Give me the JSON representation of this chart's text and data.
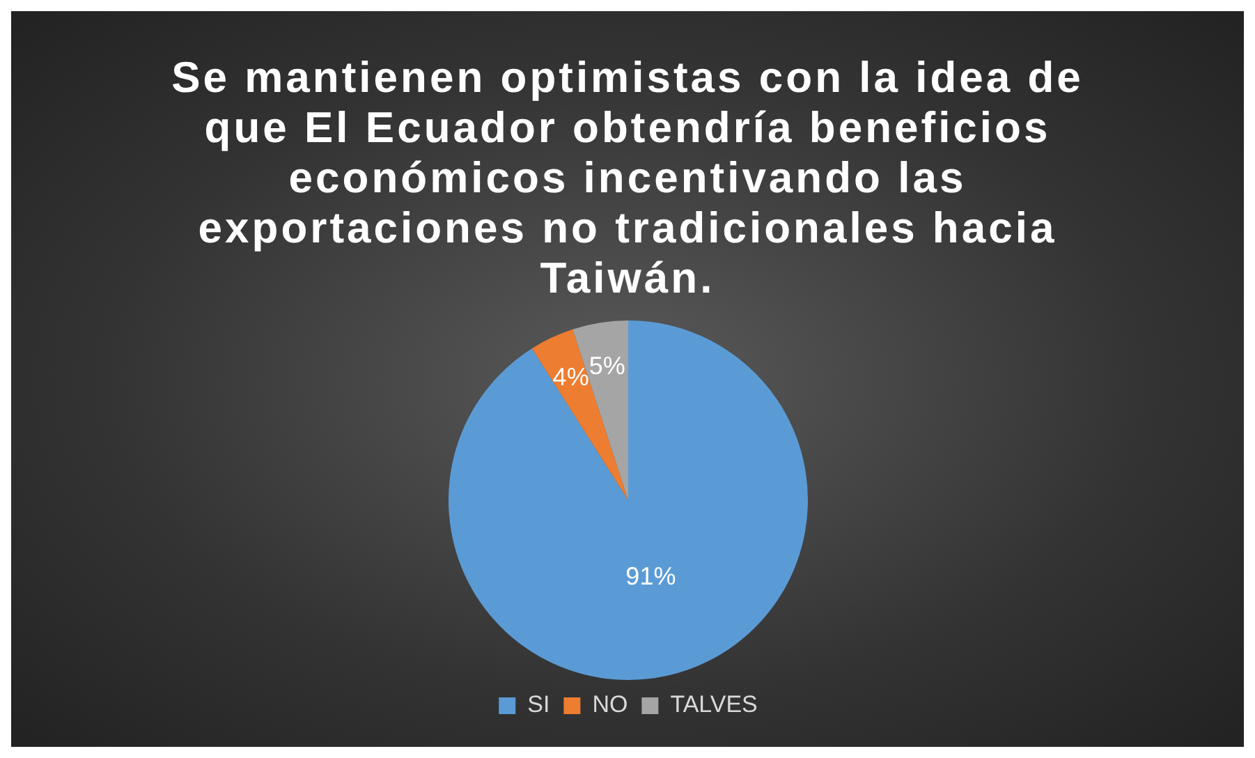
{
  "chart_data": {
    "type": "pie",
    "title": "Se mantienen optimistas con la idea de que El Ecuador obtendría beneficios económicos incentivando las exportaciones no tradicionales hacia Taiwán.",
    "categories": [
      "SI",
      "NO",
      "TALVES"
    ],
    "values": [
      91,
      4,
      5
    ],
    "value_labels": [
      "91%",
      "4%",
      "5%"
    ],
    "colors": [
      "#5b9bd5",
      "#ed7d31",
      "#a5a5a5"
    ],
    "legend": "bottom"
  }
}
